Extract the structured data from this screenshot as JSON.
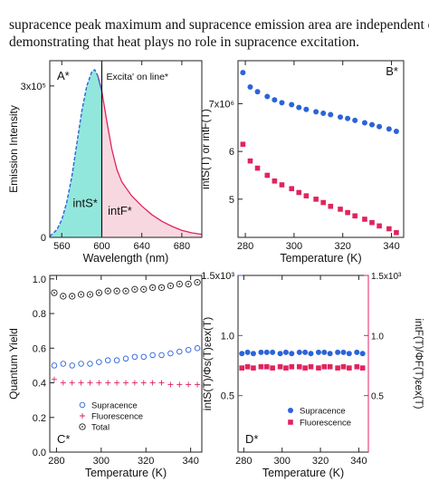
{
  "caption": {
    "line1": "supracence peak maximum and supracence emission area are independent of te",
    "line2": "demonstrating that heat plays no role in supracence excitation."
  },
  "colors": {
    "blue": "#2b63d9",
    "red": "#e0245e",
    "black": "#222222",
    "cyan_fill": "#7fe3d6",
    "pink_fill": "#f7d4dd"
  },
  "chart_data": [
    {
      "panel": "A*",
      "type": "area",
      "xlabel": "Wavelength (nm)",
      "ylabel": "Emission Intensity",
      "xlim": [
        548,
        700
      ],
      "ylim": [
        0,
        350000
      ],
      "xticks": [
        560,
        600,
        640,
        680
      ],
      "yticks": [
        {
          "value": 0,
          "label": "0"
        },
        {
          "value": 300000,
          "label": "3x10⁵"
        }
      ],
      "vline": {
        "x": 600,
        "label": "Excita' on line*"
      },
      "annotations": [
        "intS*",
        "intF*"
      ],
      "series": [
        {
          "line": "blue dashed (supracence)",
          "x": [
            548,
            555,
            560,
            565,
            570,
            575,
            580,
            585,
            590,
            593,
            596,
            600
          ],
          "y": [
            2000,
            15000,
            35000,
            70000,
            120000,
            185000,
            250000,
            300000,
            328000,
            332000,
            320000,
            290000
          ]
        },
        {
          "line": "red (fluorescence)",
          "x": [
            596,
            600,
            605,
            610,
            615,
            620,
            630,
            640,
            650,
            660,
            670,
            680,
            690,
            700
          ],
          "y": [
            320000,
            290000,
            230000,
            175000,
            135000,
            110000,
            82000,
            62000,
            45000,
            32000,
            22000,
            14000,
            9000,
            6000
          ]
        }
      ]
    },
    {
      "panel": "B*",
      "type": "scatter",
      "xlabel": "Temperature (K)",
      "ylabel": "intS(T) or intF(T)",
      "xlim": [
        277,
        345
      ],
      "ylim": [
        4200000,
        7900000
      ],
      "xticks": [
        280,
        300,
        320,
        340
      ],
      "yticks": [
        {
          "value": 5000000,
          "label": "5"
        },
        {
          "value": 6000000,
          "label": "6"
        },
        {
          "value": 7000000,
          "label": "7x10⁶"
        }
      ],
      "series": [
        {
          "marker": "blue circle",
          "x": [
            279,
            282,
            285,
            289,
            292,
            295,
            299,
            302,
            305,
            309,
            312,
            315,
            319,
            322,
            325,
            329,
            332,
            335,
            339,
            342
          ],
          "y": [
            7650000,
            7350000,
            7250000,
            7150000,
            7080000,
            7020000,
            6980000,
            6920000,
            6880000,
            6830000,
            6800000,
            6770000,
            6720000,
            6690000,
            6650000,
            6600000,
            6560000,
            6520000,
            6470000,
            6420000
          ]
        },
        {
          "marker": "red square",
          "x": [
            279,
            282,
            285,
            289,
            292,
            295,
            299,
            302,
            305,
            309,
            312,
            315,
            319,
            322,
            325,
            329,
            332,
            335,
            339,
            342
          ],
          "y": [
            6150000,
            5800000,
            5650000,
            5500000,
            5380000,
            5300000,
            5220000,
            5140000,
            5070000,
            5000000,
            4930000,
            4850000,
            4790000,
            4720000,
            4650000,
            4580000,
            4510000,
            4440000,
            4380000,
            4300000
          ]
        }
      ]
    },
    {
      "panel": "C*",
      "type": "scatter",
      "xlabel": "Temperature (K)",
      "ylabel": "Quantum Yield",
      "xlim": [
        277,
        345
      ],
      "ylim": [
        0.0,
        1.02
      ],
      "xticks": [
        280,
        300,
        320,
        340
      ],
      "yticks": [
        {
          "value": 0.0,
          "label": "0.0"
        },
        {
          "value": 0.2,
          "label": "0.2"
        },
        {
          "value": 0.4,
          "label": "0.4"
        },
        {
          "value": 0.6,
          "label": "0.6"
        },
        {
          "value": 0.8,
          "label": "0.8"
        },
        {
          "value": 1.0,
          "label": "1.0"
        }
      ],
      "legend_position": "bottom-left",
      "series": [
        {
          "name": "Supracence",
          "marker": "blue open circle",
          "x": [
            279,
            283,
            287,
            291,
            295,
            299,
            303,
            307,
            311,
            315,
            319,
            323,
            327,
            331,
            335,
            339,
            343
          ],
          "y": [
            0.5,
            0.51,
            0.5,
            0.51,
            0.51,
            0.52,
            0.53,
            0.53,
            0.54,
            0.55,
            0.55,
            0.56,
            0.56,
            0.57,
            0.58,
            0.59,
            0.6
          ]
        },
        {
          "name": "Fluorescence",
          "marker": "red plus",
          "x": [
            279,
            283,
            287,
            291,
            295,
            299,
            303,
            307,
            311,
            315,
            319,
            323,
            327,
            331,
            335,
            339,
            343
          ],
          "y": [
            0.42,
            0.4,
            0.4,
            0.4,
            0.4,
            0.4,
            0.4,
            0.4,
            0.4,
            0.4,
            0.4,
            0.4,
            0.4,
            0.39,
            0.39,
            0.39,
            0.39
          ]
        },
        {
          "name": "Total",
          "marker": "black circled dot",
          "x": [
            279,
            283,
            287,
            291,
            295,
            299,
            303,
            307,
            311,
            315,
            319,
            323,
            327,
            331,
            335,
            339,
            343
          ],
          "y": [
            0.92,
            0.9,
            0.9,
            0.91,
            0.91,
            0.92,
            0.93,
            0.93,
            0.93,
            0.94,
            0.94,
            0.95,
            0.95,
            0.96,
            0.97,
            0.97,
            0.98
          ]
        }
      ]
    },
    {
      "panel": "D*",
      "type": "scatter",
      "xlabel": "Temperature (K)",
      "ylabel": "intS(T)/Φs(T)εex(T)",
      "ylabel_right": "intF(T)/ΦF(T)εex(T)",
      "xlim": [
        277,
        345
      ],
      "ylim": [
        0.03,
        1.5
      ],
      "xticks": [
        280,
        300,
        320,
        340
      ],
      "yticks": [
        {
          "value": 0.5,
          "label": "0.5"
        },
        {
          "value": 1.0,
          "label": "1.0"
        },
        {
          "value": 1.5,
          "label": "1.5x10³"
        }
      ],
      "yticks_right": [
        {
          "value": 0.5,
          "label": "0.5"
        },
        {
          "value": 1.0,
          "label": "1.0"
        },
        {
          "value": 1.5,
          "label": "1.5x10³"
        }
      ],
      "legend_position": "bottom-right",
      "series": [
        {
          "name": "Supracence",
          "marker": "blue circle",
          "x": [
            279,
            282,
            285,
            289,
            292,
            295,
            299,
            302,
            305,
            309,
            312,
            315,
            319,
            322,
            325,
            329,
            332,
            335,
            339,
            342
          ],
          "y": [
            0.85,
            0.86,
            0.85,
            0.86,
            0.86,
            0.86,
            0.85,
            0.86,
            0.85,
            0.86,
            0.86,
            0.85,
            0.86,
            0.86,
            0.85,
            0.86,
            0.86,
            0.85,
            0.86,
            0.85
          ]
        },
        {
          "name": "Fluorescence",
          "marker": "red square",
          "x": [
            279,
            282,
            285,
            289,
            292,
            295,
            299,
            302,
            305,
            309,
            312,
            315,
            319,
            322,
            325,
            329,
            332,
            335,
            339,
            342
          ],
          "y": [
            0.73,
            0.74,
            0.73,
            0.74,
            0.74,
            0.73,
            0.74,
            0.73,
            0.74,
            0.74,
            0.73,
            0.74,
            0.73,
            0.74,
            0.74,
            0.73,
            0.74,
            0.73,
            0.74,
            0.73
          ]
        }
      ]
    }
  ]
}
